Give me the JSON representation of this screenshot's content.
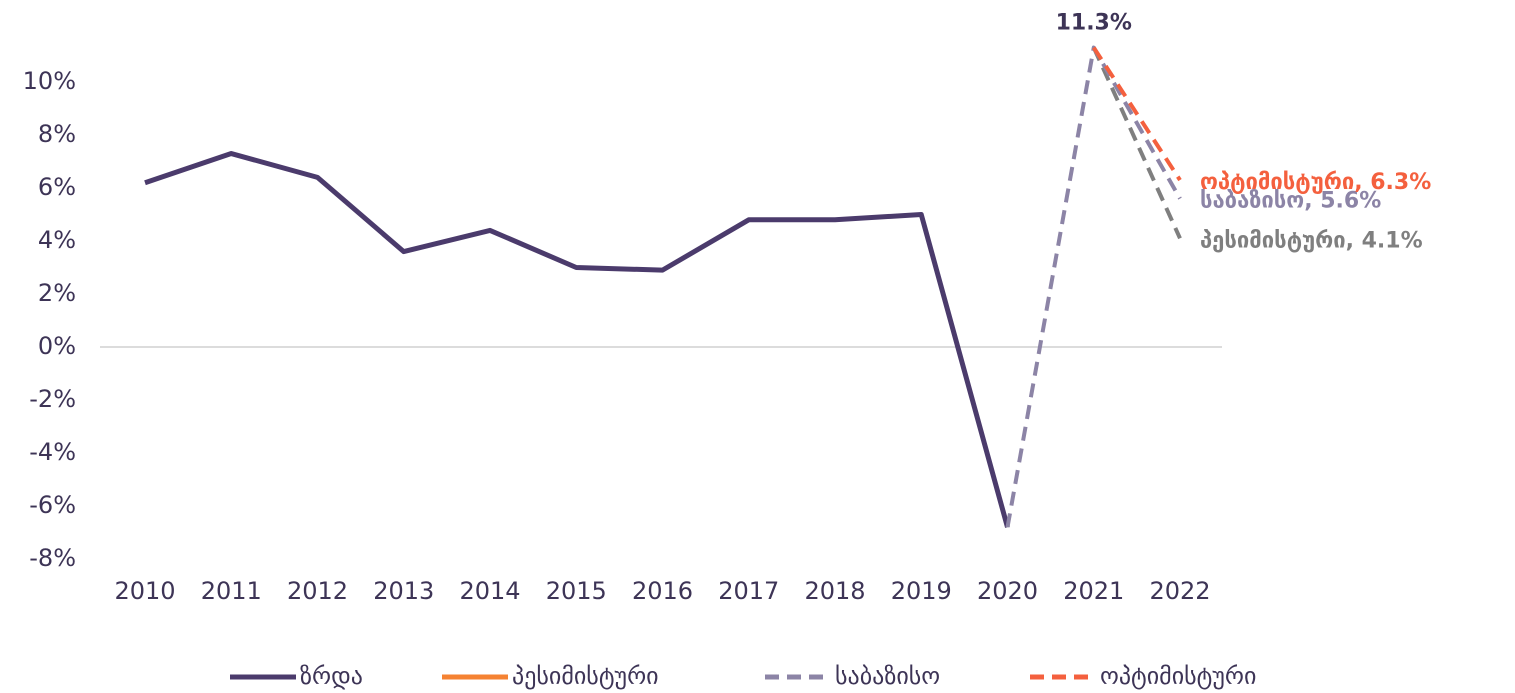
{
  "chart_data": {
    "type": "line",
    "categories": [
      "2010",
      "2011",
      "2012",
      "2013",
      "2014",
      "2015",
      "2016",
      "2017",
      "2018",
      "2019",
      "2020",
      "2021",
      "2022"
    ],
    "series": [
      {
        "name": "ზრდა",
        "color": "#4b3b6c",
        "dashed": false,
        "values": [
          6.2,
          7.3,
          6.4,
          3.6,
          4.4,
          3.0,
          2.9,
          4.8,
          4.8,
          5.0,
          -6.8,
          null,
          null
        ]
      },
      {
        "name": "პესიმისტური",
        "color": "#f58232",
        "line_color": "#7f7f7f",
        "dashed": true,
        "values": [
          null,
          null,
          null,
          null,
          null,
          null,
          null,
          null,
          null,
          null,
          null,
          11.3,
          4.1
        ],
        "value_labels": [
          null,
          null,
          null,
          null,
          null,
          null,
          null,
          null,
          null,
          null,
          null,
          null,
          "პესიმისტური, 4.1%"
        ]
      },
      {
        "name": "საბაზისო",
        "color": "#8c84a6",
        "dashed": true,
        "values": [
          null,
          null,
          null,
          null,
          null,
          null,
          null,
          null,
          null,
          null,
          -6.8,
          11.3,
          5.6
        ],
        "value_labels": [
          null,
          null,
          null,
          null,
          null,
          null,
          null,
          null,
          null,
          null,
          null,
          "11.3%",
          "საბაზისო, 5.6%"
        ]
      },
      {
        "name": "ოპტიმისტური",
        "color": "#f4603e",
        "dashed": true,
        "values": [
          null,
          null,
          null,
          null,
          null,
          null,
          null,
          null,
          null,
          null,
          null,
          11.3,
          6.3
        ],
        "value_labels": [
          null,
          null,
          null,
          null,
          null,
          null,
          null,
          null,
          null,
          null,
          null,
          null,
          "ოპტიმისტური, 6.3%"
        ]
      }
    ],
    "ylim": [
      -8,
      12
    ],
    "yticks": [
      {
        "value": -8,
        "label": "-8%"
      },
      {
        "value": -6,
        "label": "-6%"
      },
      {
        "value": -4,
        "label": "-4%"
      },
      {
        "value": -2,
        "label": "-2%"
      },
      {
        "value": 0,
        "label": "0%"
      },
      {
        "value": 2,
        "label": "2%"
      },
      {
        "value": 4,
        "label": "4%"
      },
      {
        "value": 6,
        "label": "6%"
      },
      {
        "value": 8,
        "label": "8%"
      },
      {
        "value": 10,
        "label": "10%"
      }
    ],
    "grid": false,
    "legend": "bottom"
  }
}
